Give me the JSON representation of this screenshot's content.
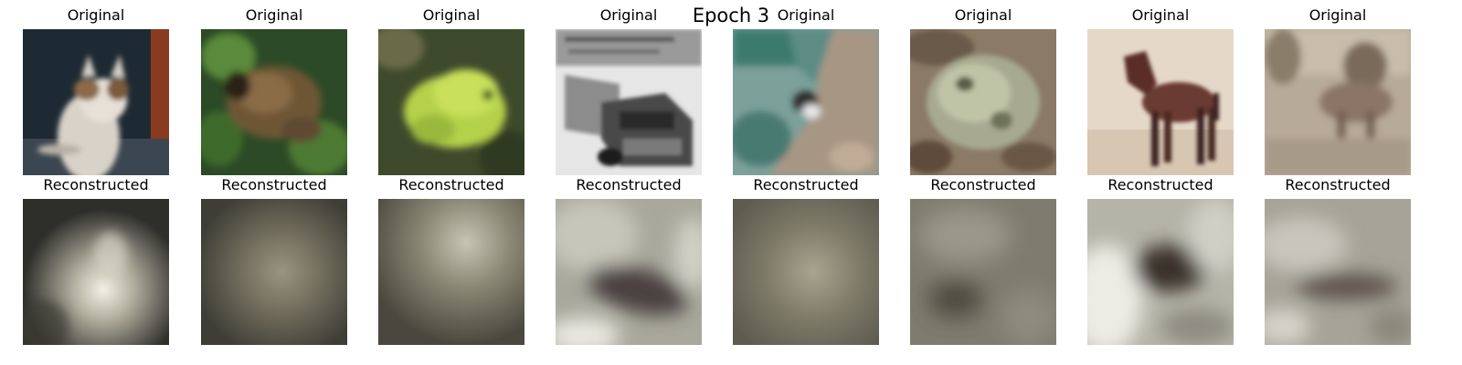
{
  "figure": {
    "title": "Epoch 3"
  },
  "columns": [
    {
      "original": {
        "title": "Original",
        "subject": "cat"
      },
      "reconstructed": {
        "title": "Reconstructed",
        "subject": "blurred bright center"
      }
    },
    {
      "original": {
        "title": "Original",
        "subject": "frog"
      },
      "reconstructed": {
        "title": "Reconstructed",
        "subject": "blurred brown blob"
      }
    },
    {
      "original": {
        "title": "Original",
        "subject": "frog"
      },
      "reconstructed": {
        "title": "Reconstructed",
        "subject": "blurred light top"
      }
    },
    {
      "original": {
        "title": "Original",
        "subject": "truck"
      },
      "reconstructed": {
        "title": "Reconstructed",
        "subject": "blurred dark diagonal band"
      }
    },
    {
      "original": {
        "title": "Original",
        "subject": "bird"
      },
      "reconstructed": {
        "title": "Reconstructed",
        "subject": "blurred muted center"
      }
    },
    {
      "original": {
        "title": "Original",
        "subject": "frog"
      },
      "reconstructed": {
        "title": "Reconstructed",
        "subject": "blurred gray-green"
      }
    },
    {
      "original": {
        "title": "Original",
        "subject": "horse"
      },
      "reconstructed": {
        "title": "Reconstructed",
        "subject": "blurred dark blob"
      }
    },
    {
      "original": {
        "title": "Original",
        "subject": "deer"
      },
      "reconstructed": {
        "title": "Reconstructed",
        "subject": "blurred dark band"
      }
    }
  ],
  "colors": {
    "background": "#ffffff",
    "text": "#000000"
  }
}
